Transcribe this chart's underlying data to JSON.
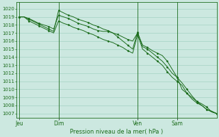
{
  "bg_color": "#cce8e0",
  "grid_color": "#99ccbb",
  "line_color": "#1a6b1a",
  "xlabel": "Pression niveau de la mer( hPa )",
  "ylim": [
    1006.5,
    1020.8
  ],
  "yticks": [
    1007,
    1008,
    1009,
    1010,
    1011,
    1012,
    1013,
    1014,
    1015,
    1016,
    1017,
    1018,
    1019,
    1020
  ],
  "xtick_labels": [
    "Jeu",
    "Dim",
    "Ven",
    "Sam"
  ],
  "xtick_positions": [
    0,
    8,
    24,
    32
  ],
  "vline_positions": [
    0,
    8,
    24,
    32
  ],
  "xlim": [
    -0.5,
    40
  ],
  "series1_x": [
    0,
    1,
    2,
    3,
    4,
    5,
    6,
    7,
    8,
    9,
    10,
    11,
    12,
    13,
    14,
    15,
    16,
    17,
    18,
    19,
    20,
    21,
    22,
    23,
    24,
    25,
    26,
    27,
    28,
    29,
    30,
    31,
    32,
    33,
    34,
    35,
    36,
    37,
    38,
    39,
    40
  ],
  "series1_y": [
    1019.0,
    1019.0,
    1018.8,
    1018.5,
    1018.2,
    1018.0,
    1017.8,
    1017.5,
    1019.2,
    1019.0,
    1018.8,
    1018.5,
    1018.2,
    1018.0,
    1017.8,
    1017.5,
    1017.3,
    1017.2,
    1017.2,
    1017.0,
    1016.8,
    1016.5,
    1016.2,
    1016.0,
    1017.0,
    1015.5,
    1015.2,
    1014.8,
    1014.5,
    1014.2,
    1013.5,
    1012.5,
    1011.5,
    1010.0,
    1009.5,
    1009.0,
    1008.5,
    1008.2,
    1007.8,
    1007.2,
    1007.0
  ],
  "series2_x": [
    0,
    1,
    2,
    3,
    4,
    5,
    6,
    7,
    8,
    9,
    10,
    11,
    12,
    13,
    14,
    15,
    16,
    17,
    18,
    19,
    20,
    21,
    22,
    23,
    24,
    25,
    26,
    27,
    28,
    29,
    30,
    31,
    32,
    33,
    34,
    35,
    36,
    37,
    38,
    39,
    40
  ],
  "series2_y": [
    1019.0,
    1019.0,
    1018.7,
    1018.4,
    1018.1,
    1017.8,
    1017.5,
    1017.2,
    1019.8,
    1019.5,
    1019.2,
    1019.0,
    1018.7,
    1018.5,
    1018.3,
    1018.0,
    1017.8,
    1017.5,
    1017.3,
    1017.0,
    1016.5,
    1016.0,
    1015.5,
    1015.0,
    1017.1,
    1015.3,
    1015.0,
    1014.5,
    1014.0,
    1013.5,
    1012.8,
    1012.0,
    1011.5,
    1010.8,
    1010.0,
    1009.2,
    1008.5,
    1008.0,
    1007.5,
    1007.3,
    1007.0
  ],
  "series3_x": [
    0,
    1,
    2,
    3,
    4,
    5,
    6,
    7,
    8,
    9,
    10,
    11,
    12,
    13,
    14,
    15,
    16,
    17,
    18,
    19,
    20,
    21,
    22,
    23,
    24,
    25,
    26,
    27,
    28,
    29,
    30,
    31,
    32,
    33,
    34,
    35,
    36,
    37,
    38,
    39,
    40
  ],
  "series3_y": [
    1019.0,
    1019.0,
    1018.5,
    1018.2,
    1017.9,
    1017.6,
    1017.3,
    1017.0,
    1018.5,
    1018.2,
    1018.0,
    1017.7,
    1017.5,
    1017.3,
    1017.0,
    1016.8,
    1016.5,
    1016.2,
    1016.0,
    1015.8,
    1015.5,
    1015.2,
    1014.8,
    1014.5,
    1016.8,
    1015.0,
    1014.5,
    1014.0,
    1013.5,
    1013.0,
    1012.2,
    1011.5,
    1011.0,
    1010.5,
    1009.5,
    1008.8,
    1008.3,
    1008.0,
    1007.5,
    1007.2,
    1007.0
  ],
  "marker_every": 2,
  "linewidth": 0.7,
  "markersize": 1.5,
  "tick_fontsize": 5,
  "xlabel_fontsize": 6,
  "xtick_fontsize": 5.5
}
